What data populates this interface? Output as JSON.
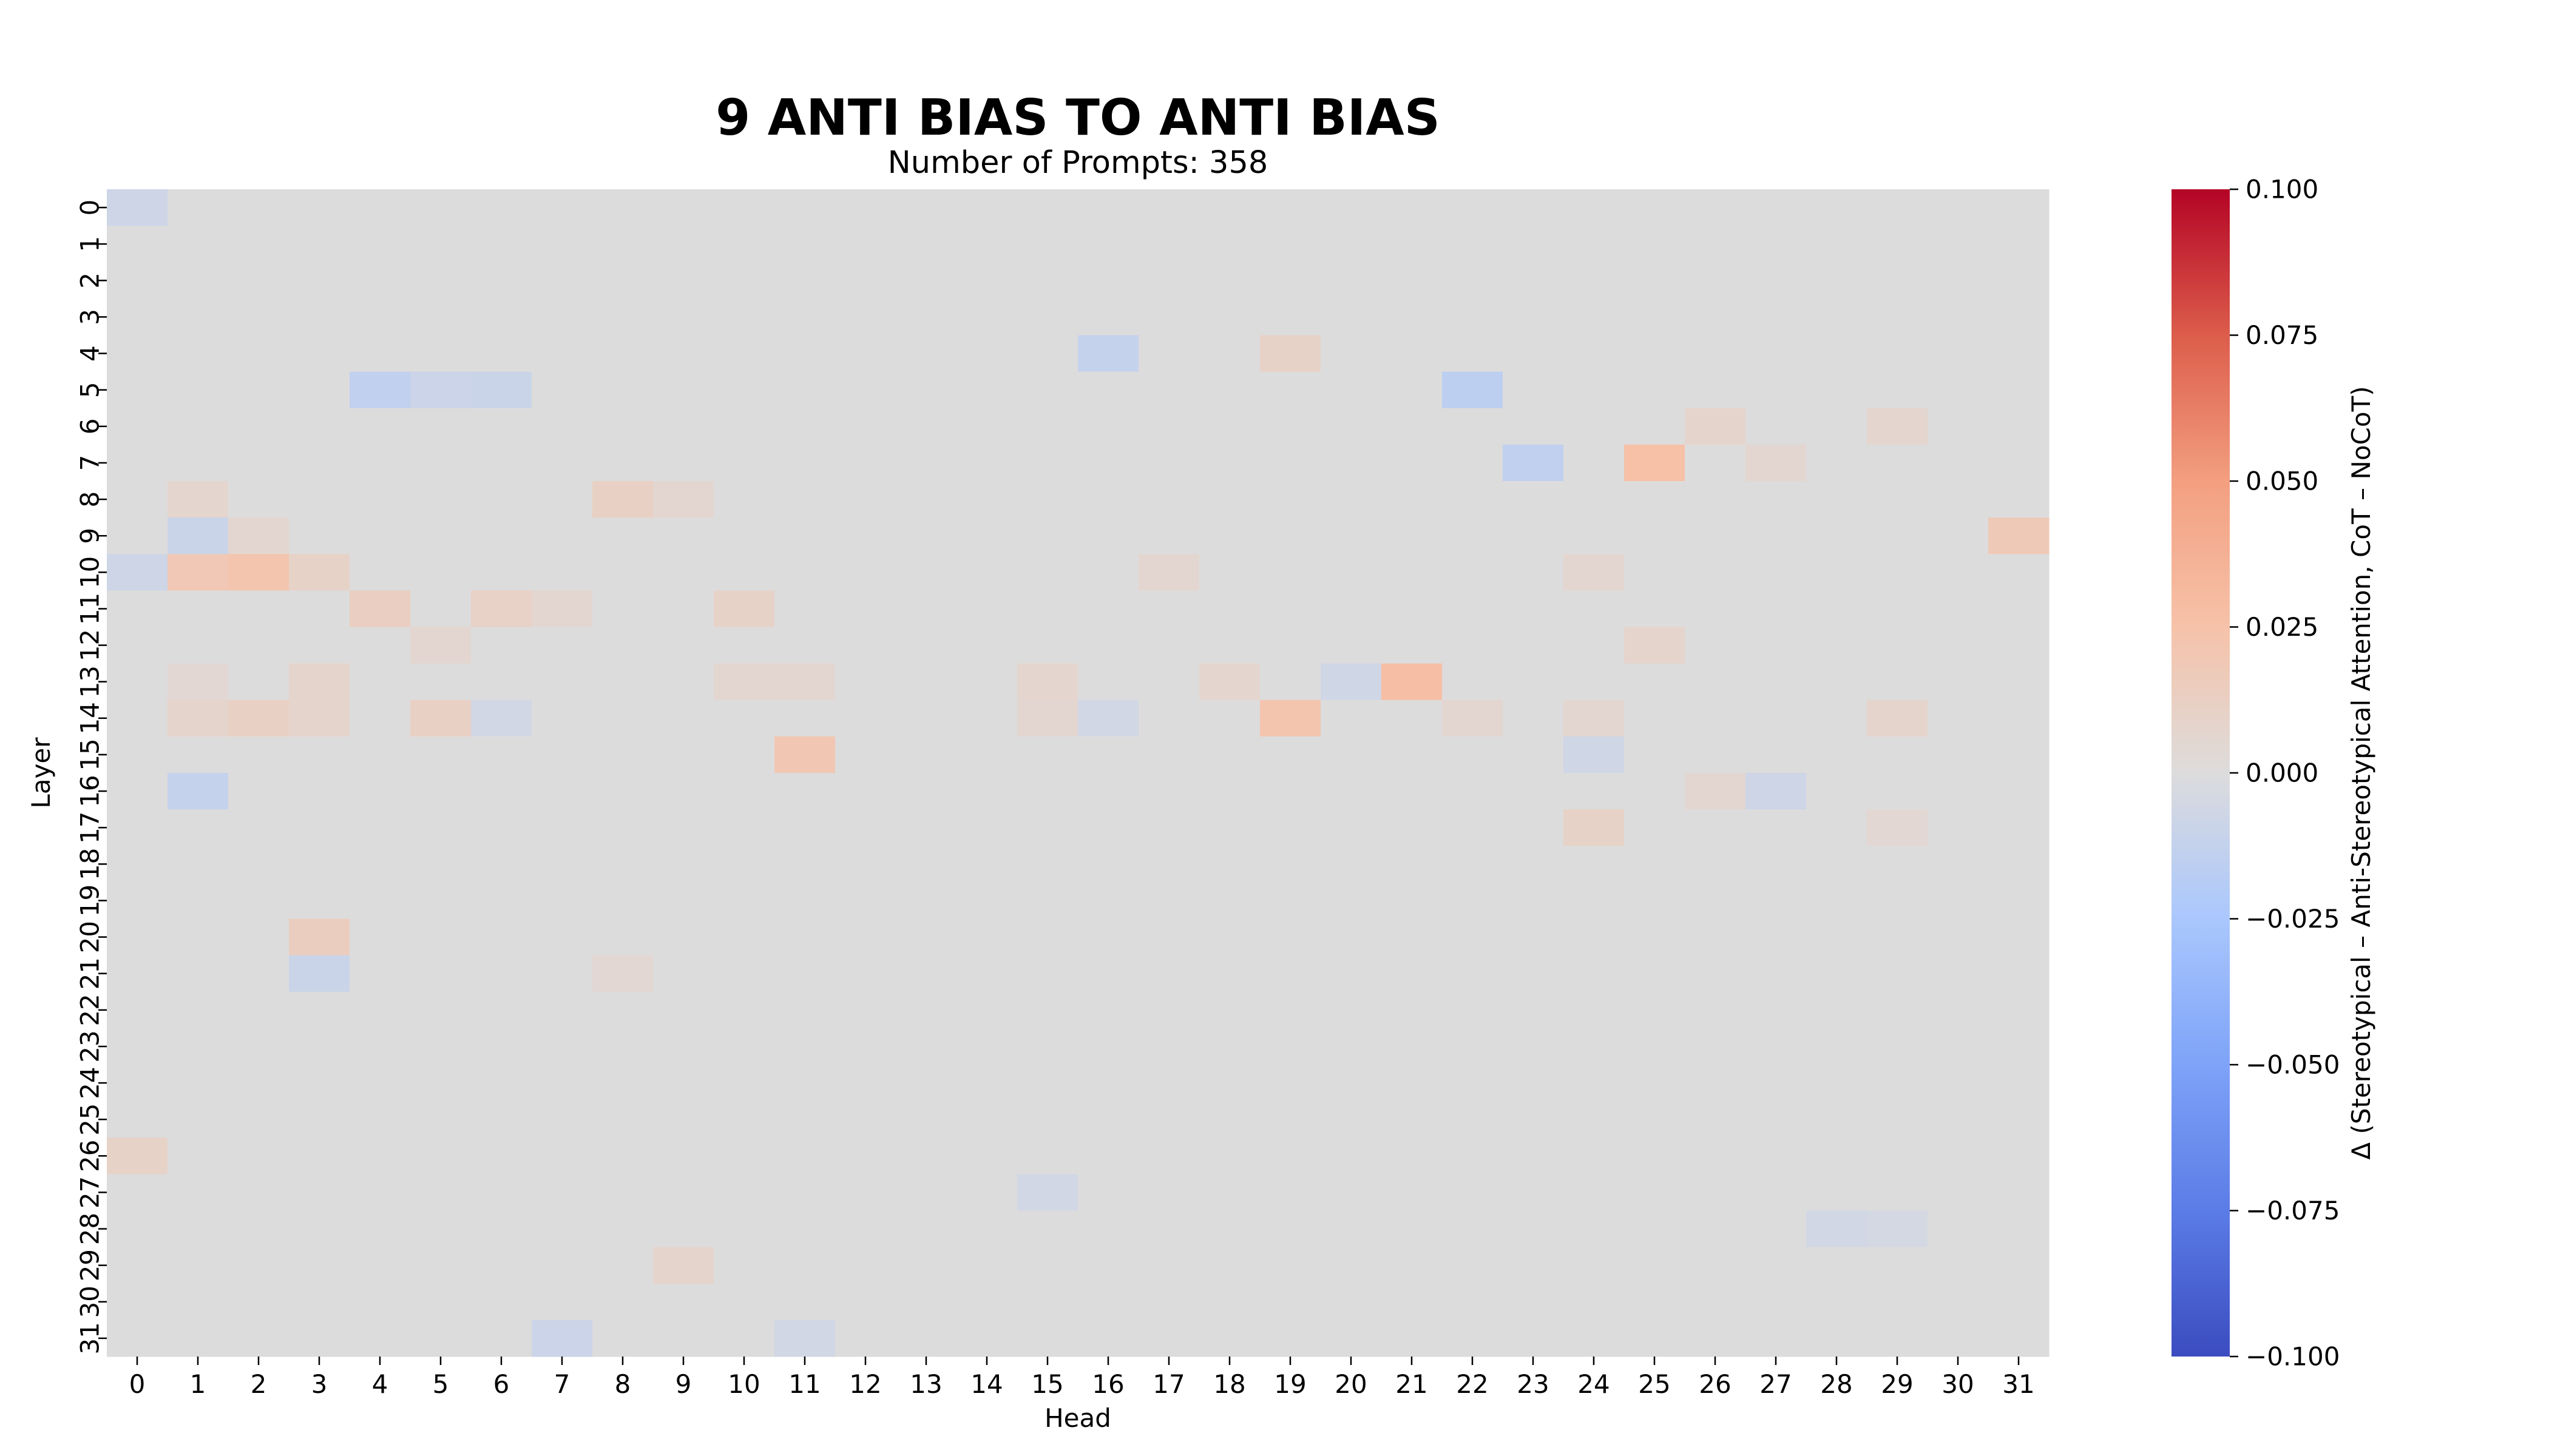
{
  "chart_data": {
    "type": "heatmap",
    "title": "9 ANTI BIAS TO ANTI BIAS",
    "subtitle": "Number of Prompts: 358",
    "xlabel": "Head",
    "ylabel": "Layer",
    "x_ticks": [
      0,
      1,
      2,
      3,
      4,
      5,
      6,
      7,
      8,
      9,
      10,
      11,
      12,
      13,
      14,
      15,
      16,
      17,
      18,
      19,
      20,
      21,
      22,
      23,
      24,
      25,
      26,
      27,
      28,
      29,
      30,
      31
    ],
    "y_ticks": [
      0,
      1,
      2,
      3,
      4,
      5,
      6,
      7,
      8,
      9,
      10,
      11,
      12,
      13,
      14,
      15,
      16,
      17,
      18,
      19,
      20,
      21,
      22,
      23,
      24,
      25,
      26,
      27,
      28,
      29,
      30,
      31
    ],
    "colormap": "coolwarm",
    "colorbar": {
      "label": "Δ (Stereotypical – Anti-Stereotypical Attention, CoT – NoCoT)",
      "vmin": -0.1,
      "vmax": 0.1,
      "ticks": [
        "0.100",
        "0.075",
        "0.050",
        "0.025",
        "0.000",
        "−0.025",
        "−0.050",
        "−0.075",
        "−0.100"
      ],
      "tick_values": [
        0.1,
        0.075,
        0.05,
        0.025,
        0.0,
        -0.025,
        -0.05,
        -0.075,
        -0.1
      ]
    },
    "background_value": 0.0,
    "nonzero_cells": [
      [
        0,
        0,
        -0.008
      ],
      [
        4,
        16,
        -0.012
      ],
      [
        4,
        19,
        0.01
      ],
      [
        5,
        4,
        -0.014
      ],
      [
        5,
        5,
        -0.009
      ],
      [
        5,
        6,
        -0.01
      ],
      [
        5,
        22,
        -0.016
      ],
      [
        6,
        26,
        0.008
      ],
      [
        6,
        29,
        0.007
      ],
      [
        7,
        23,
        -0.014
      ],
      [
        7,
        25,
        0.026
      ],
      [
        7,
        27,
        0.006
      ],
      [
        8,
        1,
        0.007
      ],
      [
        8,
        8,
        0.012
      ],
      [
        8,
        9,
        0.006
      ],
      [
        9,
        1,
        -0.01
      ],
      [
        9,
        2,
        0.006
      ],
      [
        9,
        31,
        0.018
      ],
      [
        10,
        0,
        -0.008
      ],
      [
        10,
        1,
        0.019
      ],
      [
        10,
        2,
        0.022
      ],
      [
        10,
        3,
        0.01
      ],
      [
        10,
        17,
        0.006
      ],
      [
        10,
        24,
        0.006
      ],
      [
        11,
        4,
        0.013
      ],
      [
        11,
        6,
        0.011
      ],
      [
        11,
        7,
        0.006
      ],
      [
        11,
        10,
        0.01
      ],
      [
        12,
        5,
        0.006
      ],
      [
        12,
        25,
        0.008
      ],
      [
        13,
        1,
        0.005
      ],
      [
        13,
        3,
        0.008
      ],
      [
        13,
        10,
        0.006
      ],
      [
        13,
        11,
        0.006
      ],
      [
        13,
        15,
        0.007
      ],
      [
        13,
        18,
        0.007
      ],
      [
        13,
        20,
        -0.007
      ],
      [
        13,
        21,
        0.028
      ],
      [
        14,
        1,
        0.008
      ],
      [
        14,
        2,
        0.012
      ],
      [
        14,
        3,
        0.008
      ],
      [
        14,
        5,
        0.012
      ],
      [
        14,
        6,
        -0.006
      ],
      [
        14,
        15,
        0.006
      ],
      [
        14,
        16,
        -0.006
      ],
      [
        14,
        19,
        0.022
      ],
      [
        14,
        22,
        0.006
      ],
      [
        14,
        24,
        0.006
      ],
      [
        14,
        29,
        0.008
      ],
      [
        15,
        11,
        0.02
      ],
      [
        15,
        24,
        -0.007
      ],
      [
        16,
        1,
        -0.012
      ],
      [
        16,
        26,
        0.006
      ],
      [
        16,
        27,
        -0.008
      ],
      [
        17,
        24,
        0.01
      ],
      [
        17,
        29,
        0.005
      ],
      [
        20,
        3,
        0.014
      ],
      [
        21,
        3,
        -0.01
      ],
      [
        21,
        8,
        0.005
      ],
      [
        26,
        0,
        0.01
      ],
      [
        27,
        15,
        -0.006
      ],
      [
        28,
        28,
        -0.006
      ],
      [
        28,
        29,
        -0.005
      ],
      [
        29,
        9,
        0.008
      ],
      [
        31,
        7,
        -0.009
      ],
      [
        31,
        11,
        -0.006
      ]
    ]
  }
}
